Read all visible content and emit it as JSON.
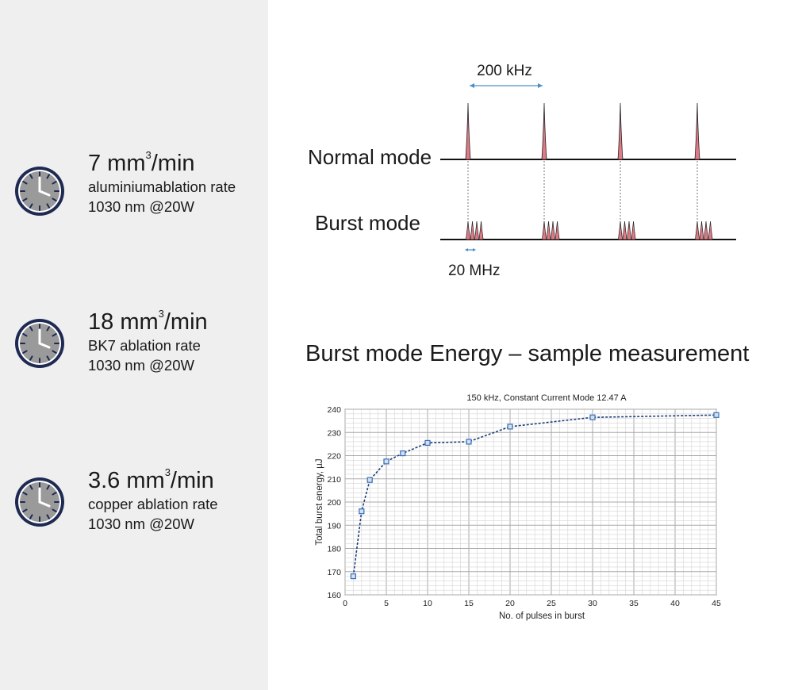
{
  "stats": [
    {
      "value": "7 mm",
      "sup": "3",
      "unit": "/min",
      "desc": "aluminiumablation rate",
      "cond": "1030 nm @20W",
      "icon": "clock-icon"
    },
    {
      "value": "18 mm",
      "sup": "3",
      "unit": "/min",
      "desc": "BK7  ablation rate",
      "cond": "1030 nm @20W",
      "icon": "clock-icon"
    },
    {
      "value": "3.6 mm",
      "sup": "3",
      "unit": "/min",
      "desc": "copper ablation rate",
      "cond": "1030 nm @20W",
      "icon": "clock-icon"
    }
  ],
  "pulse_diagram": {
    "freq_top": "200 kHz",
    "normal_label": "Normal mode",
    "burst_label": "Burst mode",
    "freq_bottom": "20 MHz",
    "pulse_color": "#e07b86",
    "arrow_color": "#4a8fc8"
  },
  "chart_heading": "Burst mode Energy – sample measurement",
  "chart_data": {
    "type": "line",
    "title": "150 kHz, Constant Current Mode 12.47 A",
    "xlabel": "No. of pulses in burst",
    "ylabel": "Total burst energy, µJ",
    "xlim": [
      0,
      45
    ],
    "ylim": [
      160,
      240
    ],
    "xticks": [
      0,
      5,
      10,
      15,
      20,
      25,
      30,
      35,
      40,
      45
    ],
    "yticks": [
      160,
      170,
      180,
      190,
      200,
      210,
      220,
      230,
      240
    ],
    "grid": true,
    "line_color": "#1f3d7a",
    "marker_color": "#3b6db3",
    "x": [
      1,
      2,
      3,
      5,
      7,
      10,
      15,
      20,
      30,
      45
    ],
    "y": [
      168,
      196,
      209.5,
      217.5,
      221,
      225.5,
      226,
      232.5,
      236.5,
      237.5
    ]
  }
}
